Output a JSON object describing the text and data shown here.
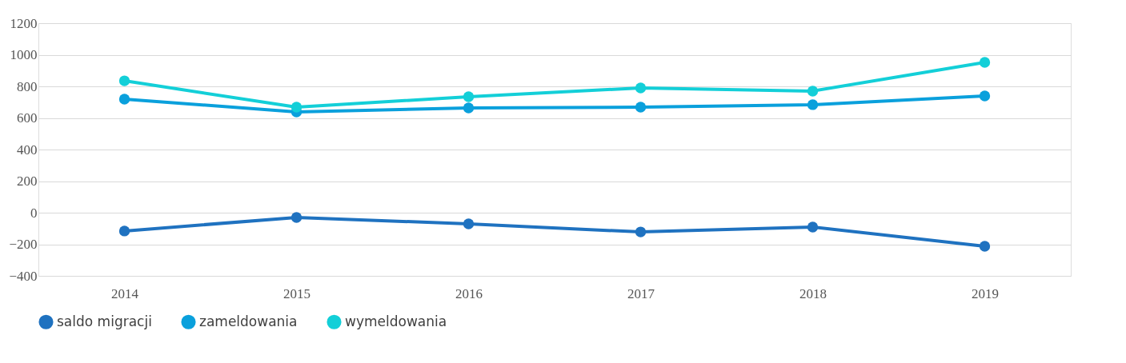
{
  "chart_data": {
    "type": "line",
    "categories": [
      "2014",
      "2015",
      "2016",
      "2017",
      "2018",
      "2019"
    ],
    "series": [
      {
        "name": "saldo migracji",
        "color": "#1f72c0",
        "values": [
          -116,
          -30,
          -71,
          -122,
          -91,
          -213
        ]
      },
      {
        "name": "zameldowania",
        "color": "#0aa0dc",
        "values": [
          719,
          638,
          663,
          668,
          684,
          739
        ]
      },
      {
        "name": "wymeldowania",
        "color": "#13cfd8",
        "values": [
          835,
          668,
          734,
          790,
          770,
          952
        ]
      }
    ],
    "ylim": [
      -400,
      1200
    ],
    "yticks": [
      -400,
      -200,
      0,
      200,
      400,
      600,
      800,
      1000,
      1200
    ],
    "grid": "y",
    "legend": "bottom",
    "marker": "circle",
    "line_style": "solid"
  }
}
